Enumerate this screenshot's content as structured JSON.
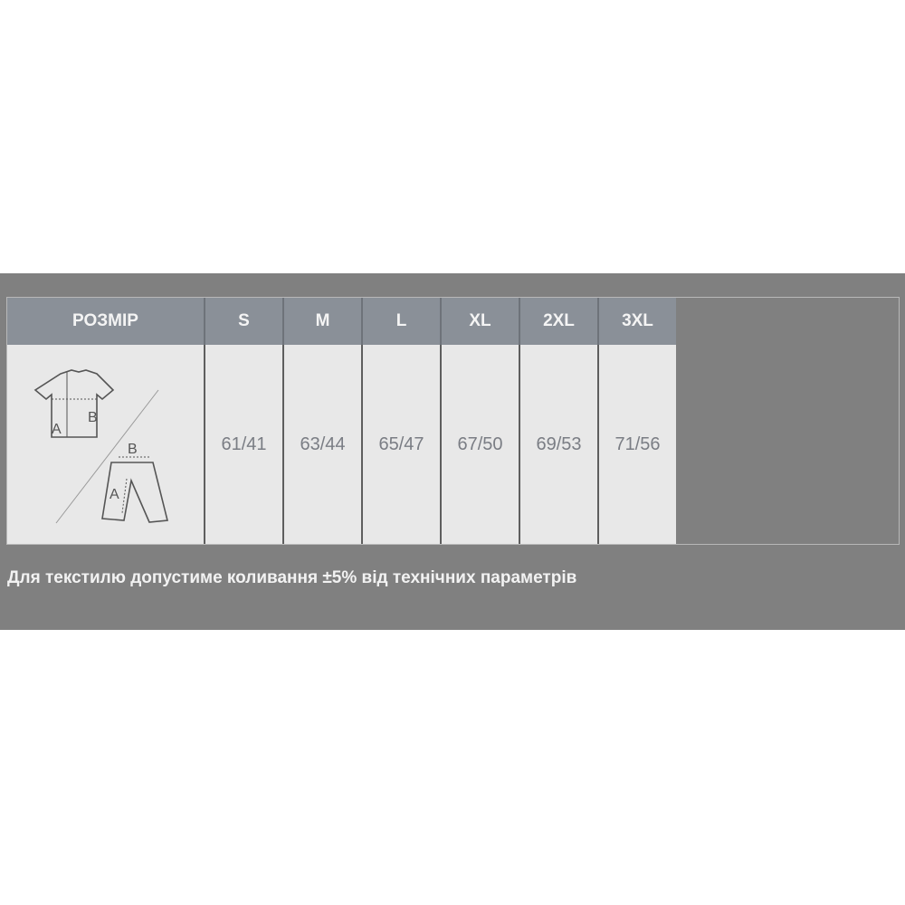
{
  "table": {
    "header_label": "РОЗМІР",
    "sizes": [
      "S",
      "M",
      "L",
      "XL",
      "2XL",
      "3XL"
    ],
    "values": [
      "61/41",
      "63/44",
      "65/47",
      "67/50",
      "69/53",
      "71/56"
    ],
    "diagram": {
      "shirt_labels": [
        "A",
        "B"
      ],
      "pants_labels": [
        "B",
        "A"
      ]
    }
  },
  "note": "Для текстилю допустиме коливання ±5% від технічних параметрів",
  "colors": {
    "band": "#808080",
    "header": "#8a9098",
    "cell": "#e8e8e8"
  }
}
